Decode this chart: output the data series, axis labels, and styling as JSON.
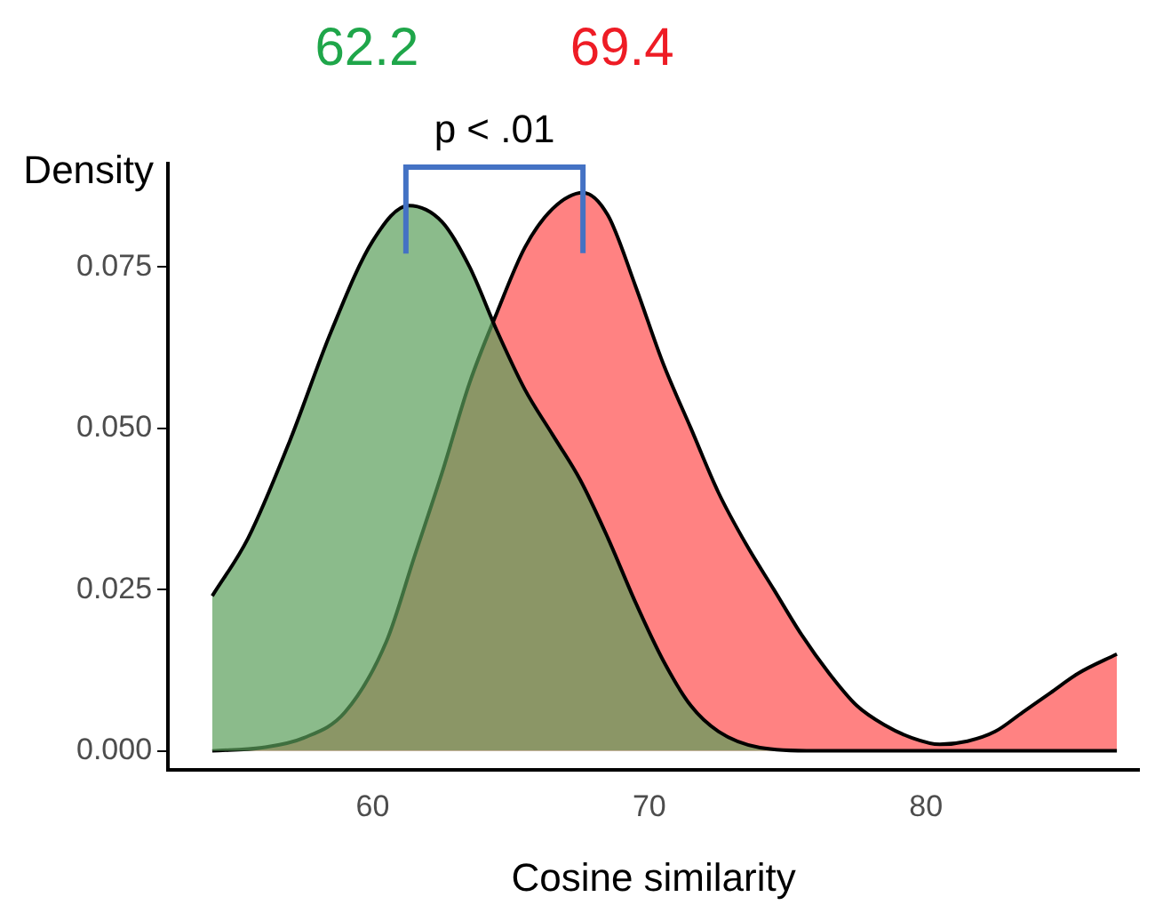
{
  "chart_data": {
    "type": "area",
    "xlabel": "Cosine similarity",
    "ylabel": "Density",
    "xlim": [
      52.6,
      87.7
    ],
    "xticks": [
      60,
      70,
      80
    ],
    "ylim": [
      -0.003,
      0.091
    ],
    "yticks": [
      {
        "value": 0,
        "label": "0.000"
      },
      {
        "value": 0.025,
        "label": "0.025"
      },
      {
        "value": 0.05,
        "label": "0.050"
      },
      {
        "value": 0.075,
        "label": "0.075"
      }
    ],
    "grid": false,
    "legend": false,
    "marker": "none",
    "annotations": [
      {
        "text": "62.2",
        "x": 61.2,
        "y": 0.0845
      },
      {
        "text": "69.4",
        "x": 67.6,
        "y": 0.0865
      },
      "p < .01"
    ],
    "series": [
      {
        "color": "#5a9e5a",
        "x": [
          54.2,
          55.5,
          57,
          58.5,
          60,
          61.3,
          62.5,
          63.5,
          64.5,
          65.5,
          66.5,
          67.5,
          68.5,
          69.5,
          70.5,
          71.5,
          72.5,
          74,
          76,
          80,
          86.9
        ],
        "values": [
          0.024,
          0.033,
          0.048,
          0.065,
          0.079,
          0.0845,
          0.082,
          0.075,
          0.065,
          0.056,
          0.049,
          0.042,
          0.033,
          0.023,
          0.014,
          0.007,
          0.003,
          0.0005,
          0,
          0,
          0
        ]
      },
      {
        "color": "#ff4d4d",
        "x": [
          54.2,
          56,
          57.5,
          59,
          60.5,
          61.5,
          62.5,
          63.5,
          64.5,
          65.5,
          66.5,
          67.6,
          68.5,
          69.5,
          70.5,
          71.5,
          72.5,
          73.5,
          74.5,
          75.5,
          76.5,
          77.5,
          78.5,
          79.5,
          80.5,
          81.5,
          82.5,
          83.5,
          84.5,
          85.5,
          86.9
        ],
        "values": [
          0,
          0.0005,
          0.002,
          0.006,
          0.017,
          0.03,
          0.043,
          0.057,
          0.068,
          0.078,
          0.084,
          0.0865,
          0.083,
          0.072,
          0.06,
          0.05,
          0.04,
          0.032,
          0.025,
          0.018,
          0.012,
          0.007,
          0.004,
          0.002,
          0.001,
          0.0015,
          0.003,
          0.006,
          0.009,
          0.012,
          0.015
        ]
      }
    ]
  }
}
